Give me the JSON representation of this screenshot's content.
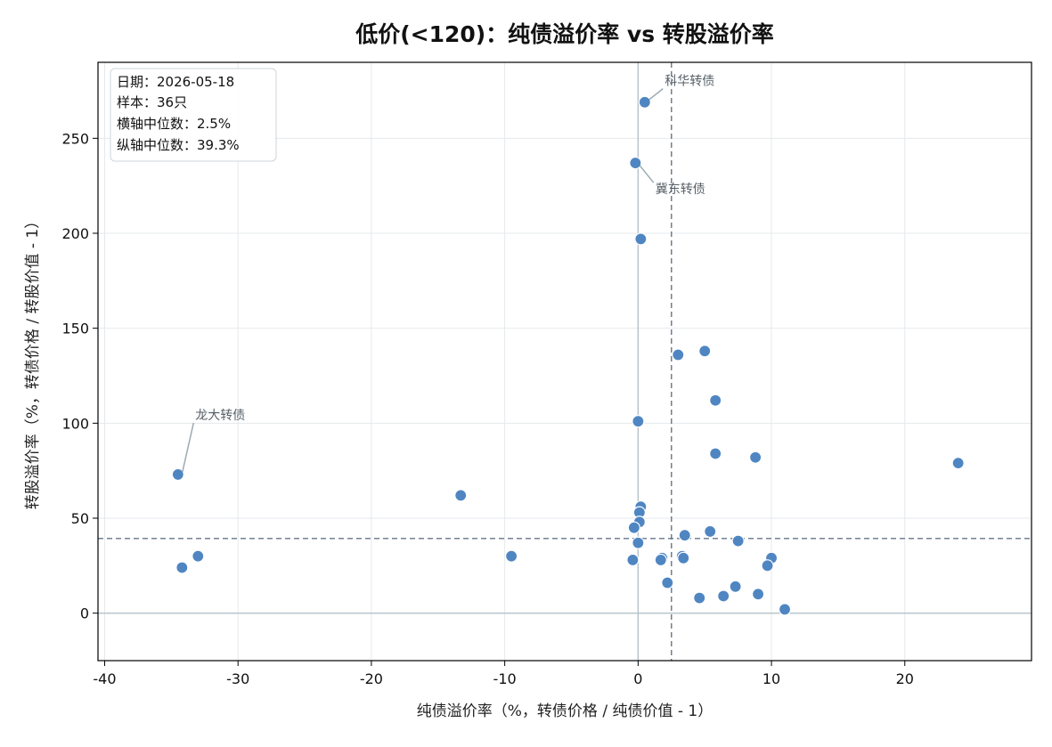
{
  "chart_data": {
    "type": "scatter",
    "title": "低价(<120)：纯债溢价率 vs 转股溢价率",
    "xlabel": "纯债溢价率（%，转债价格 / 纯债价值 - 1）",
    "ylabel": "转股溢价率（%，转债价格 / 转股价值 - 1）",
    "xlim": [
      -40.5,
      29.5
    ],
    "ylim": [
      -25,
      290
    ],
    "xticks": [
      -40,
      -30,
      -20,
      -10,
      0,
      10,
      20
    ],
    "yticks": [
      0,
      50,
      100,
      150,
      200,
      250
    ],
    "grid": true,
    "zero_lines": {
      "x": 0,
      "y": 0
    },
    "median_lines": {
      "x": 2.5,
      "y": 39.3
    },
    "info_box": {
      "position": "top-left",
      "lines": [
        "日期：2026-05-18",
        "样本：36只",
        "横轴中位数：2.5%",
        "纵轴中位数：39.3%"
      ]
    },
    "marker_color": "#4f86c2",
    "points": [
      {
        "x": 0.5,
        "y": 269
      },
      {
        "x": -0.2,
        "y": 237
      },
      {
        "x": 0.2,
        "y": 197
      },
      {
        "x": 3.0,
        "y": 136
      },
      {
        "x": 5.0,
        "y": 138
      },
      {
        "x": 5.8,
        "y": 112
      },
      {
        "x": 0.0,
        "y": 101
      },
      {
        "x": 5.8,
        "y": 84
      },
      {
        "x": 8.8,
        "y": 82
      },
      {
        "x": 24.0,
        "y": 79
      },
      {
        "x": -34.5,
        "y": 73
      },
      {
        "x": -13.3,
        "y": 62
      },
      {
        "x": 0.2,
        "y": 56
      },
      {
        "x": 0.1,
        "y": 53
      },
      {
        "x": 0.1,
        "y": 48
      },
      {
        "x": -0.3,
        "y": 45
      },
      {
        "x": 5.4,
        "y": 43
      },
      {
        "x": 3.5,
        "y": 41
      },
      {
        "x": 7.5,
        "y": 38
      },
      {
        "x": 0.0,
        "y": 37
      },
      {
        "x": -33.0,
        "y": 30
      },
      {
        "x": -9.5,
        "y": 30
      },
      {
        "x": 1.8,
        "y": 29
      },
      {
        "x": 3.3,
        "y": 30
      },
      {
        "x": 3.4,
        "y": 29
      },
      {
        "x": 10.0,
        "y": 29
      },
      {
        "x": -0.4,
        "y": 28
      },
      {
        "x": 1.7,
        "y": 28
      },
      {
        "x": -34.2,
        "y": 24
      },
      {
        "x": 9.7,
        "y": 25
      },
      {
        "x": 2.2,
        "y": 16
      },
      {
        "x": 7.3,
        "y": 14
      },
      {
        "x": 9.0,
        "y": 10
      },
      {
        "x": 6.4,
        "y": 9
      },
      {
        "x": 4.6,
        "y": 8
      },
      {
        "x": 11.0,
        "y": 2
      }
    ],
    "annotations": [
      {
        "text": "科华转债",
        "x": 0.5,
        "y": 269,
        "text_x": 2.0,
        "text_y": 278,
        "anchor": "start"
      },
      {
        "text": "冀东转债",
        "x": -0.2,
        "y": 237,
        "text_x": 1.3,
        "text_y": 221,
        "anchor": "start"
      },
      {
        "text": "龙大转债",
        "x": -34.5,
        "y": 73,
        "text_x": -33.2,
        "text_y": 102,
        "anchor": "start"
      }
    ]
  }
}
